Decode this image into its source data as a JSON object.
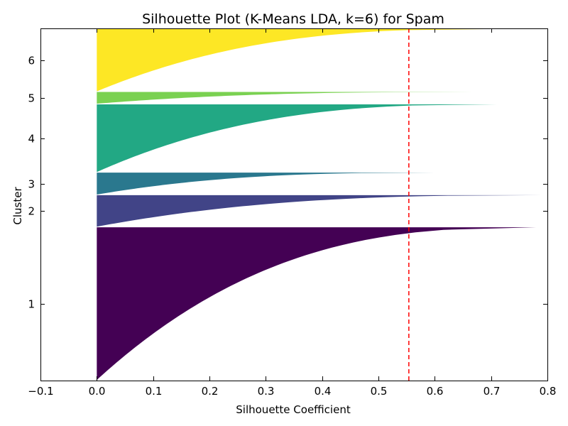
{
  "chart_data": {
    "type": "silhouette",
    "title": "Silhouette Plot (K-Means LDA, k=6) for Spam",
    "xlabel": "Silhouette Coefficient",
    "ylabel": "Cluster",
    "xlim": [
      -0.1,
      0.8
    ],
    "x_ticks": [
      "−0.1",
      "0.0",
      "0.1",
      "0.2",
      "0.3",
      "0.4",
      "0.5",
      "0.6",
      "0.7",
      "0.8"
    ],
    "grid": false,
    "average_silhouette": 0.554,
    "clusters": [
      {
        "label": "1",
        "color": "#440154",
        "y_range": [
          10,
          2483
        ],
        "max": 0.78,
        "min": 0.0
      },
      {
        "label": "2",
        "color": "#414487",
        "y_range": [
          2493,
          3003
        ],
        "max": 0.79,
        "min": 0.0
      },
      {
        "label": "3",
        "color": "#2a788e",
        "y_range": [
          3013,
          3368
        ],
        "max": 0.6,
        "min": 0.0
      },
      {
        "label": "4",
        "color": "#22a884",
        "y_range": [
          3378,
          4475
        ],
        "max": 0.71,
        "min": 0.0
      },
      {
        "label": "5",
        "color": "#7ad151",
        "y_range": [
          4485,
          4675
        ],
        "max": 0.67,
        "min": 0.0
      },
      {
        "label": "6",
        "color": "#fde725",
        "y_range": [
          4685,
          5695
        ],
        "max": 0.7,
        "min": 0.0
      }
    ],
    "ylim": [
      0,
      5705
    ],
    "avg_line_color": "#ff0000"
  }
}
